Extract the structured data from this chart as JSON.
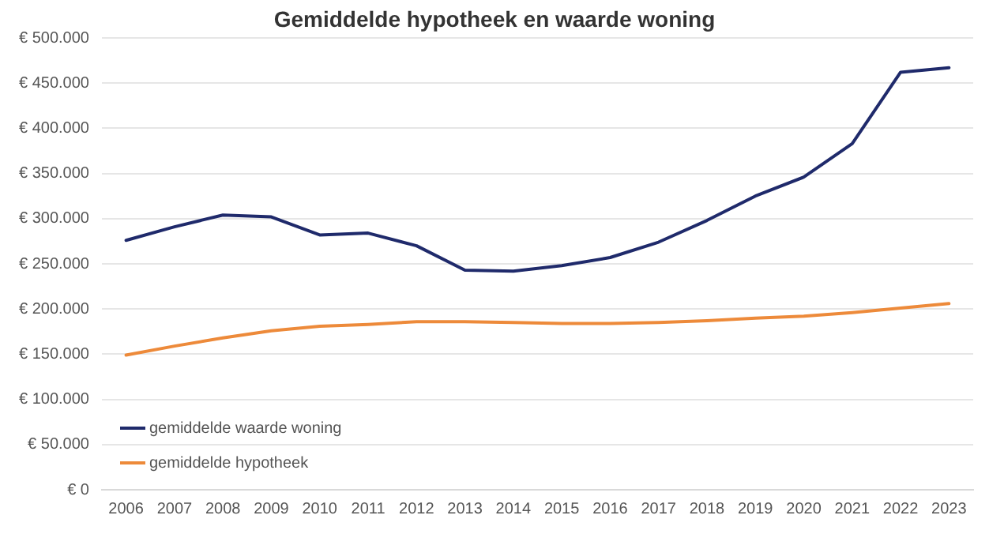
{
  "chart_data": {
    "type": "line",
    "title": "Gemiddelde hypotheek en waarde woning",
    "categories": [
      "2006",
      "2007",
      "2008",
      "2009",
      "2010",
      "2011",
      "2012",
      "2013",
      "2014",
      "2015",
      "2016",
      "2017",
      "2018",
      "2019",
      "2020",
      "2021",
      "2022",
      "2023"
    ],
    "series": [
      {
        "name": "gemiddelde waarde woning",
        "color": "#1f2a6b",
        "values": [
          276000,
          291000,
          304000,
          302000,
          282000,
          284000,
          270000,
          243000,
          242000,
          248000,
          257000,
          274000,
          298000,
          325000,
          346000,
          383000,
          462000,
          467000
        ]
      },
      {
        "name": "gemiddelde hypotheek",
        "color": "#ed8a3a",
        "values": [
          149000,
          159000,
          168000,
          176000,
          181000,
          183000,
          186000,
          186000,
          185000,
          184000,
          184000,
          185000,
          187000,
          190000,
          192000,
          196000,
          201000,
          206000
        ]
      }
    ],
    "ylim": [
      0,
      500000
    ],
    "yticks": [
      {
        "value": 0,
        "label": "€ 0"
      },
      {
        "value": 50000,
        "label": "€ 50.000"
      },
      {
        "value": 100000,
        "label": "€ 100.000"
      },
      {
        "value": 150000,
        "label": "€ 150.000"
      },
      {
        "value": 200000,
        "label": "€ 200.000"
      },
      {
        "value": 250000,
        "label": "€ 250.000"
      },
      {
        "value": 300000,
        "label": "€ 300.000"
      },
      {
        "value": 350000,
        "label": "€ 350.000"
      },
      {
        "value": 400000,
        "label": "€ 400.000"
      },
      {
        "value": 450000,
        "label": "€ 450.000"
      },
      {
        "value": 500000,
        "label": "€ 500.000"
      }
    ],
    "grid": "y",
    "legend": "bottom left",
    "marker": "none",
    "line_style": "solid"
  }
}
